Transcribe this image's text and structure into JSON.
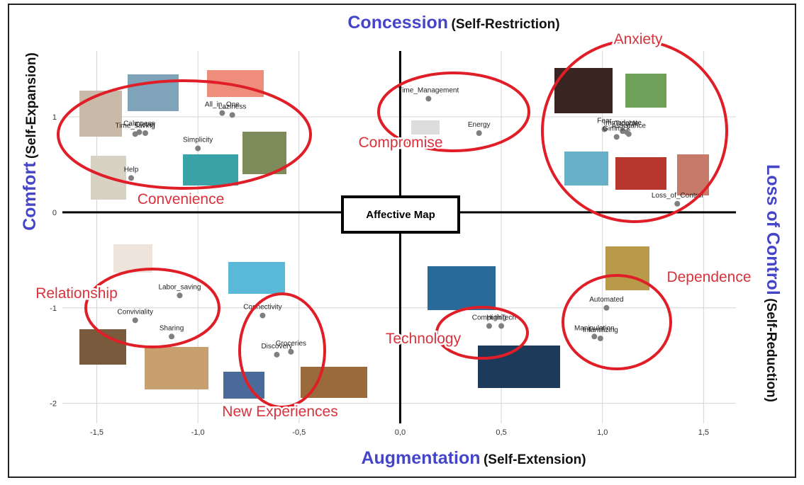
{
  "chart_data": {
    "type": "scatter",
    "title": "Affective Map",
    "top_label": {
      "main": "Concession",
      "sub": "(Self-Restriction)"
    },
    "x_label": {
      "main": "Augmentation",
      "sub": "(Self-Extension)"
    },
    "y_label": {
      "main": "Comfort",
      "sub": "(Self-Expansion)"
    },
    "right_label": {
      "main": "Loss of Control",
      "sub": "(Self-Reduction)"
    },
    "annotations": [
      "Convenience",
      "Compromise",
      "Anxiety",
      "Relationship",
      "New Experiences",
      "Technology",
      "Dependence"
    ],
    "color": "#7f7f7f",
    "labels": [
      "Time_Management",
      "Energy",
      "Fear",
      "Immoderate",
      "Gimmick",
      "Trouble",
      "Assistance",
      "Loss_of_Control",
      "All_in_One",
      "Laziness",
      "Calmness",
      "Clever",
      "Time_saving",
      "Simplicity",
      "Help",
      "Labor_saving",
      "Conviviality",
      "Sharing",
      "Connectivity",
      "Discovery",
      "Groceries",
      "Computing",
      "HighTech",
      "Automated",
      "Manipulation",
      "Infantilizing"
    ],
    "x": [
      0.14,
      0.39,
      1.01,
      1.1,
      1.07,
      1.12,
      1.13,
      1.37,
      -0.88,
      -0.83,
      -1.29,
      -1.26,
      -1.31,
      -1.0,
      -1.33,
      -1.09,
      -1.31,
      -1.13,
      -0.68,
      -0.61,
      -0.54,
      0.44,
      0.5,
      1.02,
      0.96,
      0.99
    ],
    "y": [
      1.19,
      0.83,
      0.87,
      0.85,
      0.79,
      0.84,
      0.82,
      0.09,
      1.04,
      1.02,
      0.84,
      0.83,
      0.82,
      0.67,
      0.36,
      -0.87,
      -1.13,
      -1.3,
      -1.08,
      -1.49,
      -1.46,
      -1.19,
      -1.19,
      -1.0,
      -1.3,
      -1.32
    ],
    "xlim": [
      -1.67,
      1.66
    ],
    "ylim": [
      -2.21,
      1.69
    ],
    "xticks": [
      {
        "value": -1.5,
        "label": "-1,5"
      },
      {
        "value": -1.0,
        "label": "-1,0"
      },
      {
        "value": -0.5,
        "label": "-0,5"
      },
      {
        "value": 0,
        "label": "0,0"
      },
      {
        "value": 0.5,
        "label": "0,5"
      },
      {
        "value": 1.0,
        "label": "1,0"
      },
      {
        "value": 1.5,
        "label": "1,5"
      }
    ],
    "yticks": [
      -2,
      -1,
      0,
      1
    ],
    "grid": true
  }
}
